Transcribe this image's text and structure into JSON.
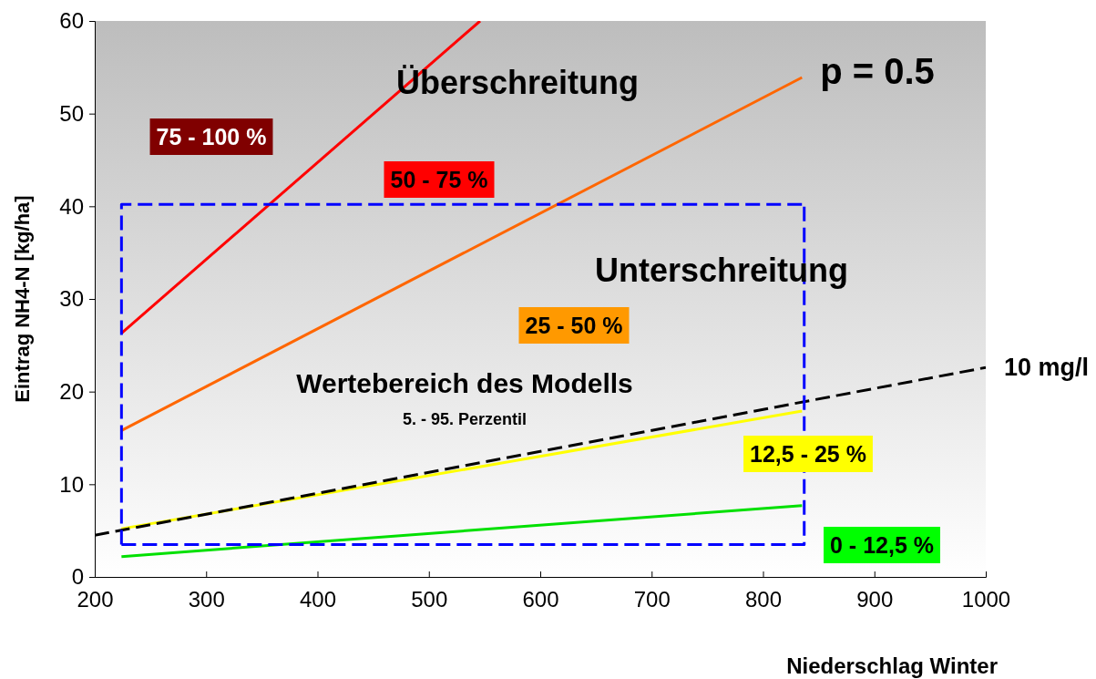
{
  "chart_data": {
    "type": "line",
    "xlabel": "Niederschlag Winter",
    "ylabel": "Eintrag NH4-N [kg/ha]",
    "xlim": [
      200,
      1000
    ],
    "ylim": [
      0,
      60
    ],
    "xticks": [
      200,
      300,
      400,
      500,
      600,
      700,
      800,
      900,
      1000
    ],
    "yticks": [
      0,
      10,
      20,
      30,
      40,
      50,
      60
    ],
    "grid": false,
    "marker": "none",
    "series": [
      {
        "color": "#ff0000",
        "x": [
          224,
          546
        ],
        "values": [
          26.3,
          60
        ]
      },
      {
        "color": "#ff6600",
        "x": [
          224,
          835
        ],
        "values": [
          15.8,
          53.9
        ]
      },
      {
        "color": "#ffff00",
        "x": [
          224,
          835
        ],
        "values": [
          5.2,
          17.9
        ]
      },
      {
        "color": "#00e000",
        "x": [
          224,
          835
        ],
        "values": [
          2.2,
          7.7
        ]
      },
      {
        "name": "10 mg/l",
        "color": "#000000",
        "line_style": "dashed",
        "x": [
          200,
          1000
        ],
        "values": [
          4.5,
          22.6
        ]
      },
      {
        "color": "#0000ff",
        "line_style": "dashed",
        "x": [
          224,
          837,
          837
        ],
        "values": [
          3.5,
          3.5,
          40.2
        ]
      },
      {
        "color": "#0000ff",
        "line_style": "dashed",
        "x": [
          224,
          224,
          837
        ],
        "values": [
          3.5,
          40.2,
          40.2
        ]
      }
    ],
    "annotations": [
      "75 - 100 %",
      "50 - 75 %",
      "25 - 50 %",
      "12,5 - 25 %",
      "0 - 12,5 %",
      "Überschreitung",
      "p = 0.5",
      "Unterschreitung",
      "Wertebereich des Modells",
      "5. - 95. Perzentil"
    ]
  }
}
